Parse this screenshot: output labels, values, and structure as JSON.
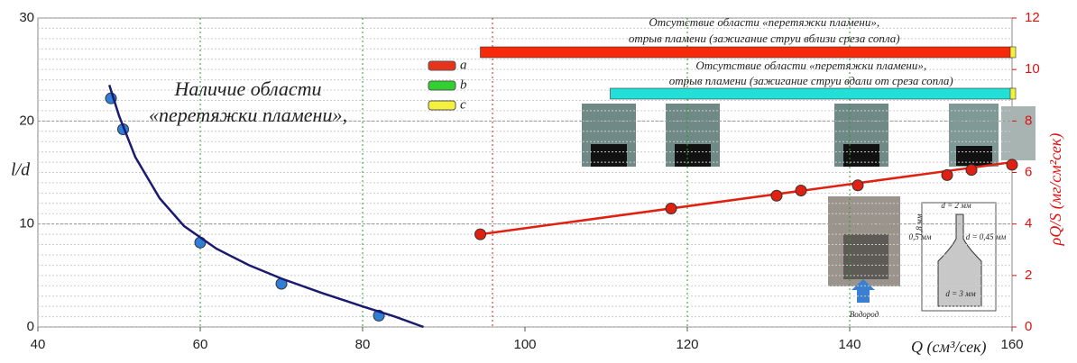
{
  "chart_data": {
    "type": "scatter",
    "xlim": [
      40,
      160
    ],
    "xticks": [
      40,
      60,
      80,
      100,
      120,
      140,
      160
    ],
    "ylim": [
      0,
      30
    ],
    "yticks": [
      0,
      10,
      20,
      30
    ],
    "y2lim": [
      0,
      12
    ],
    "y2ticks": [
      0,
      2,
      4,
      6,
      8,
      10,
      12
    ],
    "xlabel": "Q (см³/сек)",
    "ylabel": "l/d",
    "y2label": "ρQ/S (мг/см²сек)",
    "grid": true,
    "vlines": [
      {
        "x": 60,
        "color": "#2a9a2a"
      },
      {
        "x": 80,
        "color": "#2a9a2a"
      },
      {
        "x": 96,
        "color": "#d02020"
      },
      {
        "x": 120,
        "color": "#2a9a2a"
      },
      {
        "x": 140,
        "color": "#2a9a2a"
      }
    ],
    "series": [
      {
        "mode": "markers",
        "color": "#2f7fd8",
        "x": [
          49,
          50.5,
          60,
          70,
          82
        ],
        "values": [
          22.2,
          19.2,
          8.2,
          4.2,
          1.1
        ]
      },
      {
        "mode": "line",
        "color": "#1a1a70",
        "x": [
          48.8,
          50,
          52,
          55,
          58,
          62,
          66,
          70,
          75,
          80,
          84,
          87.5
        ],
        "values": [
          23.5,
          20.5,
          16.5,
          12.5,
          9.8,
          7.6,
          6.0,
          4.7,
          3.3,
          2.0,
          1.0,
          0
        ]
      },
      {
        "mode": "line",
        "color": "#e02010",
        "axis": "y2",
        "x": [
          94.5,
          160
        ],
        "values": [
          3.6,
          6.4
        ]
      },
      {
        "mode": "markers",
        "color": "#e02010",
        "axis": "y2",
        "x": [
          94.5,
          118,
          131,
          134,
          141,
          152,
          155,
          160
        ],
        "values": [
          3.6,
          4.6,
          5.1,
          5.3,
          5.5,
          5.9,
          6.1,
          6.3
        ]
      }
    ],
    "ranges": [
      {
        "color": "#f52a0a",
        "x": [
          94.5,
          160
        ],
        "labels": [
          "Отсутствие области «перетяжки пламени»,",
          "отрыв пламени (зажигание струи вблизи среза сопла)"
        ]
      },
      {
        "color": "#22e0d8",
        "x": [
          110.5,
          160
        ],
        "labels": [
          "Отсутствие области «перетяжки пламени»,",
          "отрыв пламени (зажигание струи вдали от среза сопла)"
        ]
      }
    ],
    "legend": [
      {
        "label": "a",
        "color": "#e8321a"
      },
      {
        "label": "b",
        "color": "#30d030"
      },
      {
        "label": "c",
        "color": "#f4f040"
      }
    ],
    "annotations": [
      "Наличие области",
      "«перетяжки пламени»,",
      "d = 2 мм",
      "1,8 мм",
      "0,5 мм",
      "d = 0,45 мм",
      "d = 3 мм",
      "Водород"
    ]
  }
}
